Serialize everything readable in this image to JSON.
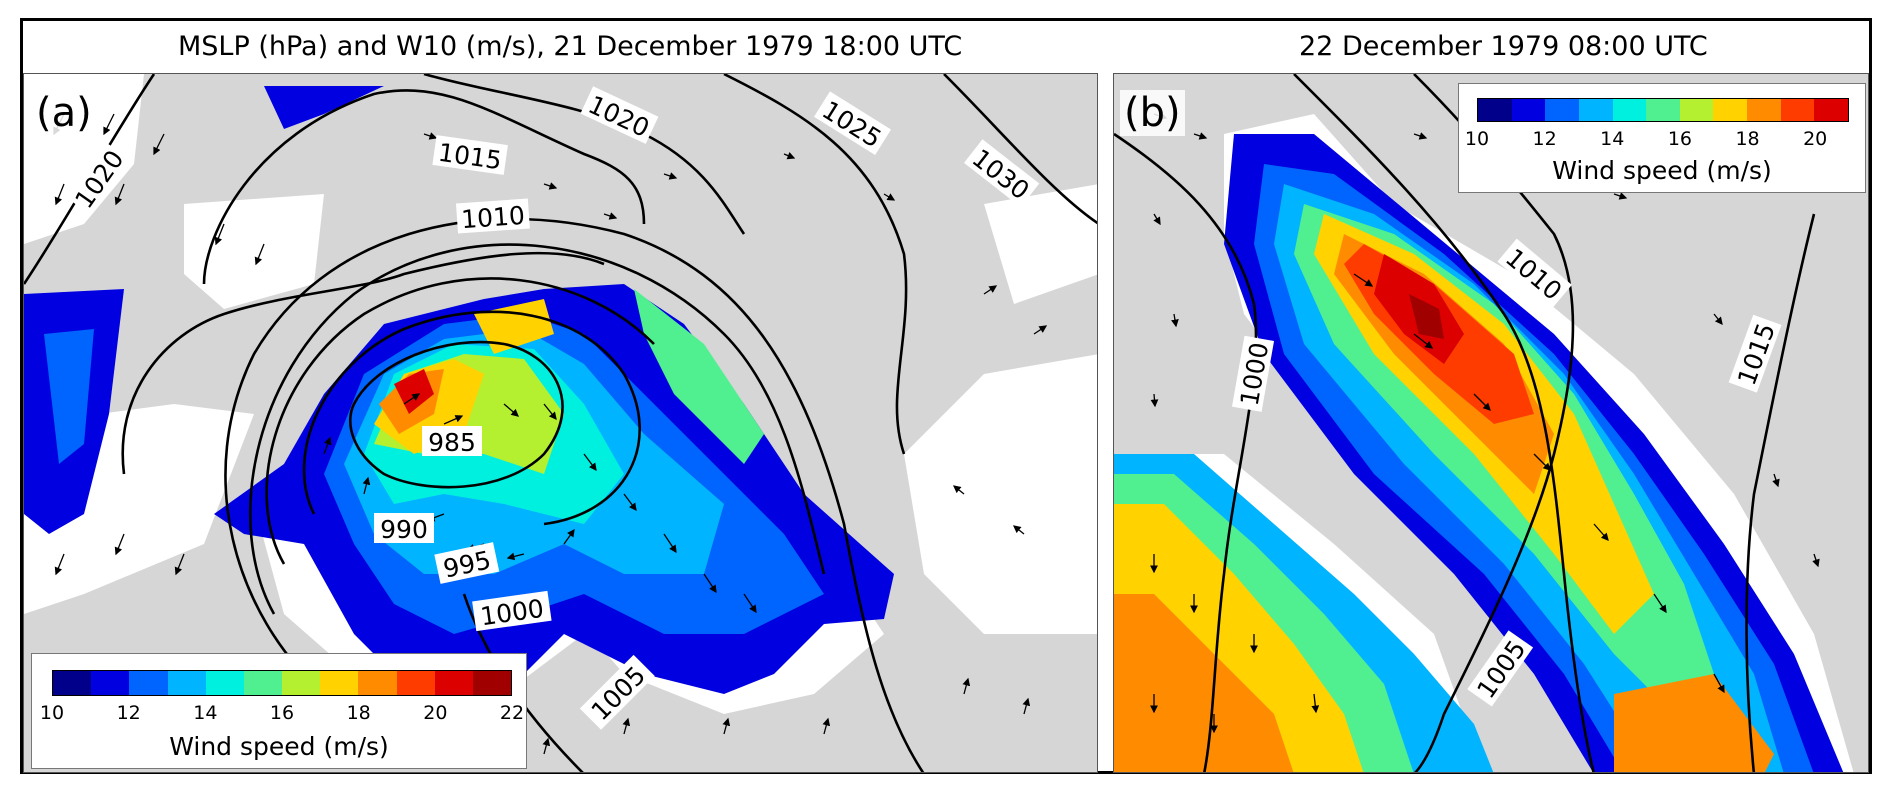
{
  "panels": {
    "a": {
      "label": "(a)",
      "title": "MSLP (hPa) and W10 (m/s), 21 December 1979 18:00 UTC",
      "isobars": [
        "1020",
        "1015",
        "1020",
        "1025",
        "1030",
        "1010",
        "985",
        "990",
        "995",
        "1000",
        "1005"
      ]
    },
    "b": {
      "label": "(b)",
      "title": "22 December 1979 08:00 UTC",
      "isobars": [
        "1010",
        "1000",
        "1015",
        "1005"
      ]
    }
  },
  "colorbar_a": {
    "title": "Wind speed (m/s)",
    "ticks": [
      "10",
      "12",
      "14",
      "16",
      "18",
      "20",
      "22"
    ]
  },
  "colorbar_b": {
    "title": "Wind speed (m/s)",
    "ticks": [
      "10",
      "12",
      "14",
      "16",
      "18",
      "20"
    ]
  },
  "colors": [
    "#00008b",
    "#0000e0",
    "#0064ff",
    "#00b4ff",
    "#00f0e0",
    "#50f090",
    "#b4f030",
    "#ffd200",
    "#ff8c00",
    "#ff3c00",
    "#dc0000",
    "#a00000"
  ]
}
